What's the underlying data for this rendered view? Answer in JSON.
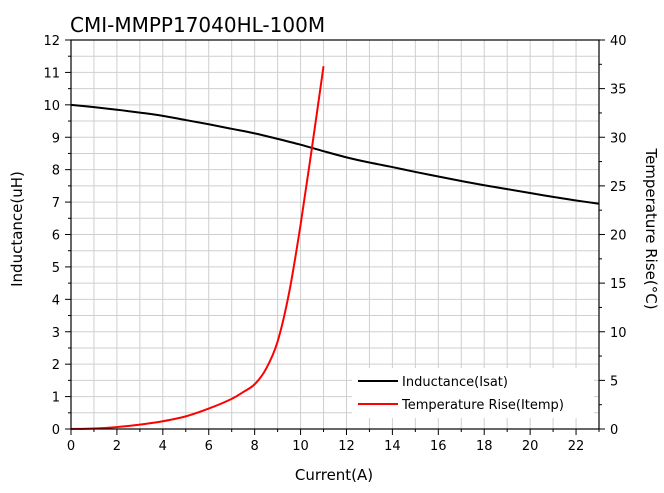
{
  "chart_data": {
    "type": "line",
    "title": "CMI-MMPP17040HL-100M",
    "xlabel": "Current(A)",
    "ylabel": "Inductance(uH)",
    "y2label": "Temperature Rise(°C)",
    "xlim": [
      0,
      23
    ],
    "ylim": [
      0,
      12
    ],
    "y2lim": [
      0,
      40
    ],
    "x_ticks": [
      0,
      2,
      4,
      6,
      8,
      10,
      12,
      14,
      16,
      18,
      20,
      22
    ],
    "y_ticks": [
      0,
      1,
      2,
      3,
      4,
      5,
      6,
      7,
      8,
      9,
      10,
      11,
      12
    ],
    "y2_ticks": [
      0,
      5,
      10,
      15,
      20,
      25,
      30,
      35,
      40
    ],
    "grid": true,
    "legend_position": "bottom-right",
    "series": [
      {
        "name": "Inductance(Isat)",
        "axis": "left",
        "color": "#000000",
        "x": [
          0,
          1,
          2,
          3,
          4,
          5,
          6,
          7,
          8,
          9,
          10,
          11,
          12,
          13,
          14,
          15,
          16,
          17,
          18,
          19,
          20,
          21,
          22,
          23
        ],
        "y": [
          10.0,
          9.93,
          9.85,
          9.76,
          9.66,
          9.53,
          9.4,
          9.26,
          9.12,
          8.95,
          8.77,
          8.57,
          8.38,
          8.22,
          8.08,
          7.93,
          7.79,
          7.65,
          7.52,
          7.4,
          7.28,
          7.16,
          7.05,
          6.95
        ]
      },
      {
        "name": "Temperature Rise(Itemp)",
        "axis": "right",
        "color": "#ff0000",
        "x": [
          0,
          1,
          2,
          3,
          4,
          5,
          6,
          7,
          7.5,
          8,
          8.5,
          9,
          9.5,
          10,
          10.5,
          11
        ],
        "y": [
          0,
          0.05,
          0.2,
          0.45,
          0.8,
          1.3,
          2.1,
          3.1,
          3.8,
          4.6,
          6.2,
          9.0,
          14.0,
          21.0,
          29.0,
          37.3
        ]
      }
    ]
  }
}
